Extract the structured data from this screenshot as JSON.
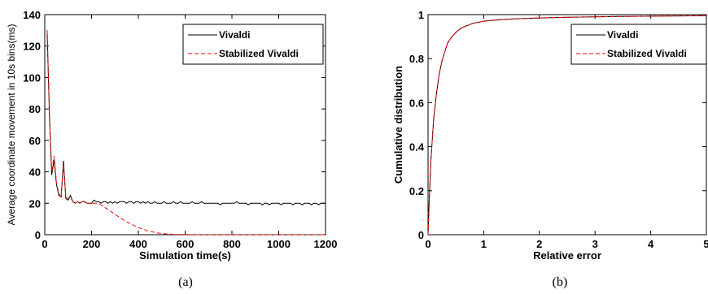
{
  "chart_data": [
    {
      "type": "line",
      "caption": "(a)",
      "xlabel": "Simulation time(s)",
      "ylabel": "Average coordinate movement in 10s bins(ms)",
      "xlim": [
        0,
        1200
      ],
      "ylim": [
        0,
        140
      ],
      "xticks": [
        0,
        200,
        400,
        600,
        800,
        1000,
        1200
      ],
      "yticks": [
        0,
        20,
        40,
        60,
        80,
        100,
        120,
        140
      ],
      "legend_position": "top-right",
      "grid": false,
      "series": [
        {
          "name": "Vivaldi",
          "color": "#000000",
          "dash": "solid",
          "x": [
            10,
            20,
            30,
            40,
            50,
            60,
            70,
            80,
            90,
            100,
            110,
            120,
            130,
            140,
            150,
            160,
            170,
            180,
            190,
            200,
            210,
            220,
            230,
            240,
            250,
            260,
            270,
            280,
            290,
            300,
            310,
            320,
            330,
            340,
            350,
            360,
            370,
            380,
            390,
            400,
            410,
            420,
            430,
            440,
            450,
            460,
            470,
            480,
            490,
            500,
            510,
            520,
            530,
            540,
            550,
            560,
            570,
            580,
            590,
            600,
            610,
            620,
            630,
            640,
            650,
            660,
            670,
            680,
            690,
            700,
            710,
            720,
            730,
            740,
            750,
            760,
            770,
            780,
            790,
            800,
            810,
            820,
            830,
            840,
            850,
            860,
            870,
            880,
            890,
            900,
            910,
            920,
            930,
            940,
            950,
            960,
            970,
            980,
            990,
            1000,
            1010,
            1020,
            1030,
            1040,
            1050,
            1060,
            1070,
            1080,
            1090,
            1100,
            1110,
            1120,
            1130,
            1140,
            1150,
            1160,
            1170,
            1180,
            1190,
            1200
          ],
          "y": [
            130,
            75,
            38,
            48,
            32,
            25,
            24,
            47,
            23,
            22,
            25,
            21,
            20,
            21,
            20,
            21,
            21,
            20,
            20,
            20,
            22,
            21,
            21,
            20,
            21,
            21,
            20,
            21,
            20,
            21,
            20,
            21,
            21,
            21,
            20,
            21,
            21,
            20,
            21,
            21,
            20,
            21,
            20,
            21,
            20,
            20,
            21,
            20,
            20,
            20,
            21,
            20,
            20,
            20,
            21,
            20,
            20,
            21,
            20,
            20,
            20,
            20,
            21,
            20,
            20,
            20,
            21,
            20,
            20,
            20,
            20,
            20,
            20,
            20,
            19,
            20,
            20,
            20,
            20,
            20,
            20,
            21,
            20,
            20,
            20,
            20,
            19,
            20,
            20,
            20,
            20,
            20,
            19,
            20,
            20,
            19,
            20,
            20,
            20,
            20,
            19,
            20,
            20,
            20,
            20,
            19,
            20,
            20,
            20,
            19,
            20,
            20,
            20,
            19,
            20,
            20,
            19,
            20,
            20,
            20
          ]
        },
        {
          "name": "Stabilized Vivaldi",
          "color": "#ff0000",
          "dash": "dashed",
          "x": [
            10,
            20,
            30,
            40,
            50,
            60,
            70,
            80,
            90,
            100,
            110,
            120,
            130,
            140,
            150,
            160,
            170,
            180,
            190,
            200,
            220,
            240,
            260,
            280,
            300,
            320,
            340,
            360,
            380,
            400,
            420,
            440,
            460,
            480,
            500,
            520,
            540,
            560,
            580,
            600,
            650,
            700,
            750,
            800,
            850,
            900,
            950,
            1000,
            1050,
            1100,
            1150,
            1200
          ],
          "y": [
            130,
            75,
            40,
            50,
            33,
            26,
            24,
            45,
            24,
            23,
            24,
            21,
            20,
            21,
            20,
            21,
            21,
            20,
            20,
            20,
            20,
            19,
            17,
            15,
            13,
            11,
            9,
            7.5,
            6,
            4.5,
            3.5,
            2.5,
            1.8,
            1.2,
            0.8,
            0.5,
            0.3,
            0.2,
            0.1,
            0.1,
            0,
            0,
            0,
            0,
            0,
            0,
            0,
            0,
            0,
            0,
            0,
            0
          ]
        }
      ]
    },
    {
      "type": "line",
      "caption": "(b)",
      "xlabel": "Relative error",
      "ylabel": "Cumulative distribution",
      "xlim": [
        0,
        5
      ],
      "ylim": [
        0,
        1
      ],
      "xticks": [
        0,
        1,
        2,
        3,
        4,
        5
      ],
      "yticks": [
        0,
        0.2,
        0.4,
        0.6,
        0.8,
        1
      ],
      "legend_position": "top-right",
      "grid": false,
      "series": [
        {
          "name": "Vivaldi",
          "color": "#000000",
          "dash": "solid",
          "x": [
            0,
            0.02,
            0.05,
            0.08,
            0.1,
            0.15,
            0.2,
            0.25,
            0.3,
            0.35,
            0.4,
            0.5,
            0.6,
            0.7,
            0.8,
            1.0,
            1.2,
            1.5,
            2.0,
            2.5,
            3.0,
            3.5,
            4.0,
            4.5,
            5.0
          ],
          "y": [
            0,
            0.15,
            0.33,
            0.45,
            0.52,
            0.64,
            0.73,
            0.79,
            0.83,
            0.87,
            0.89,
            0.92,
            0.94,
            0.95,
            0.96,
            0.97,
            0.975,
            0.98,
            0.985,
            0.988,
            0.99,
            0.992,
            0.993,
            0.994,
            0.995
          ]
        },
        {
          "name": "Stabilized Vivaldi",
          "color": "#ff0000",
          "dash": "dashed",
          "x": [
            0,
            0.02,
            0.05,
            0.08,
            0.1,
            0.15,
            0.2,
            0.25,
            0.3,
            0.35,
            0.4,
            0.5,
            0.6,
            0.7,
            0.8,
            1.0,
            1.2,
            1.5,
            2.0,
            2.5,
            3.0,
            3.5,
            4.0,
            4.5,
            5.0
          ],
          "y": [
            0,
            0.15,
            0.33,
            0.45,
            0.52,
            0.64,
            0.73,
            0.79,
            0.83,
            0.87,
            0.89,
            0.92,
            0.94,
            0.95,
            0.96,
            0.97,
            0.975,
            0.98,
            0.985,
            0.988,
            0.99,
            0.992,
            0.993,
            0.994,
            0.995
          ]
        }
      ]
    }
  ]
}
